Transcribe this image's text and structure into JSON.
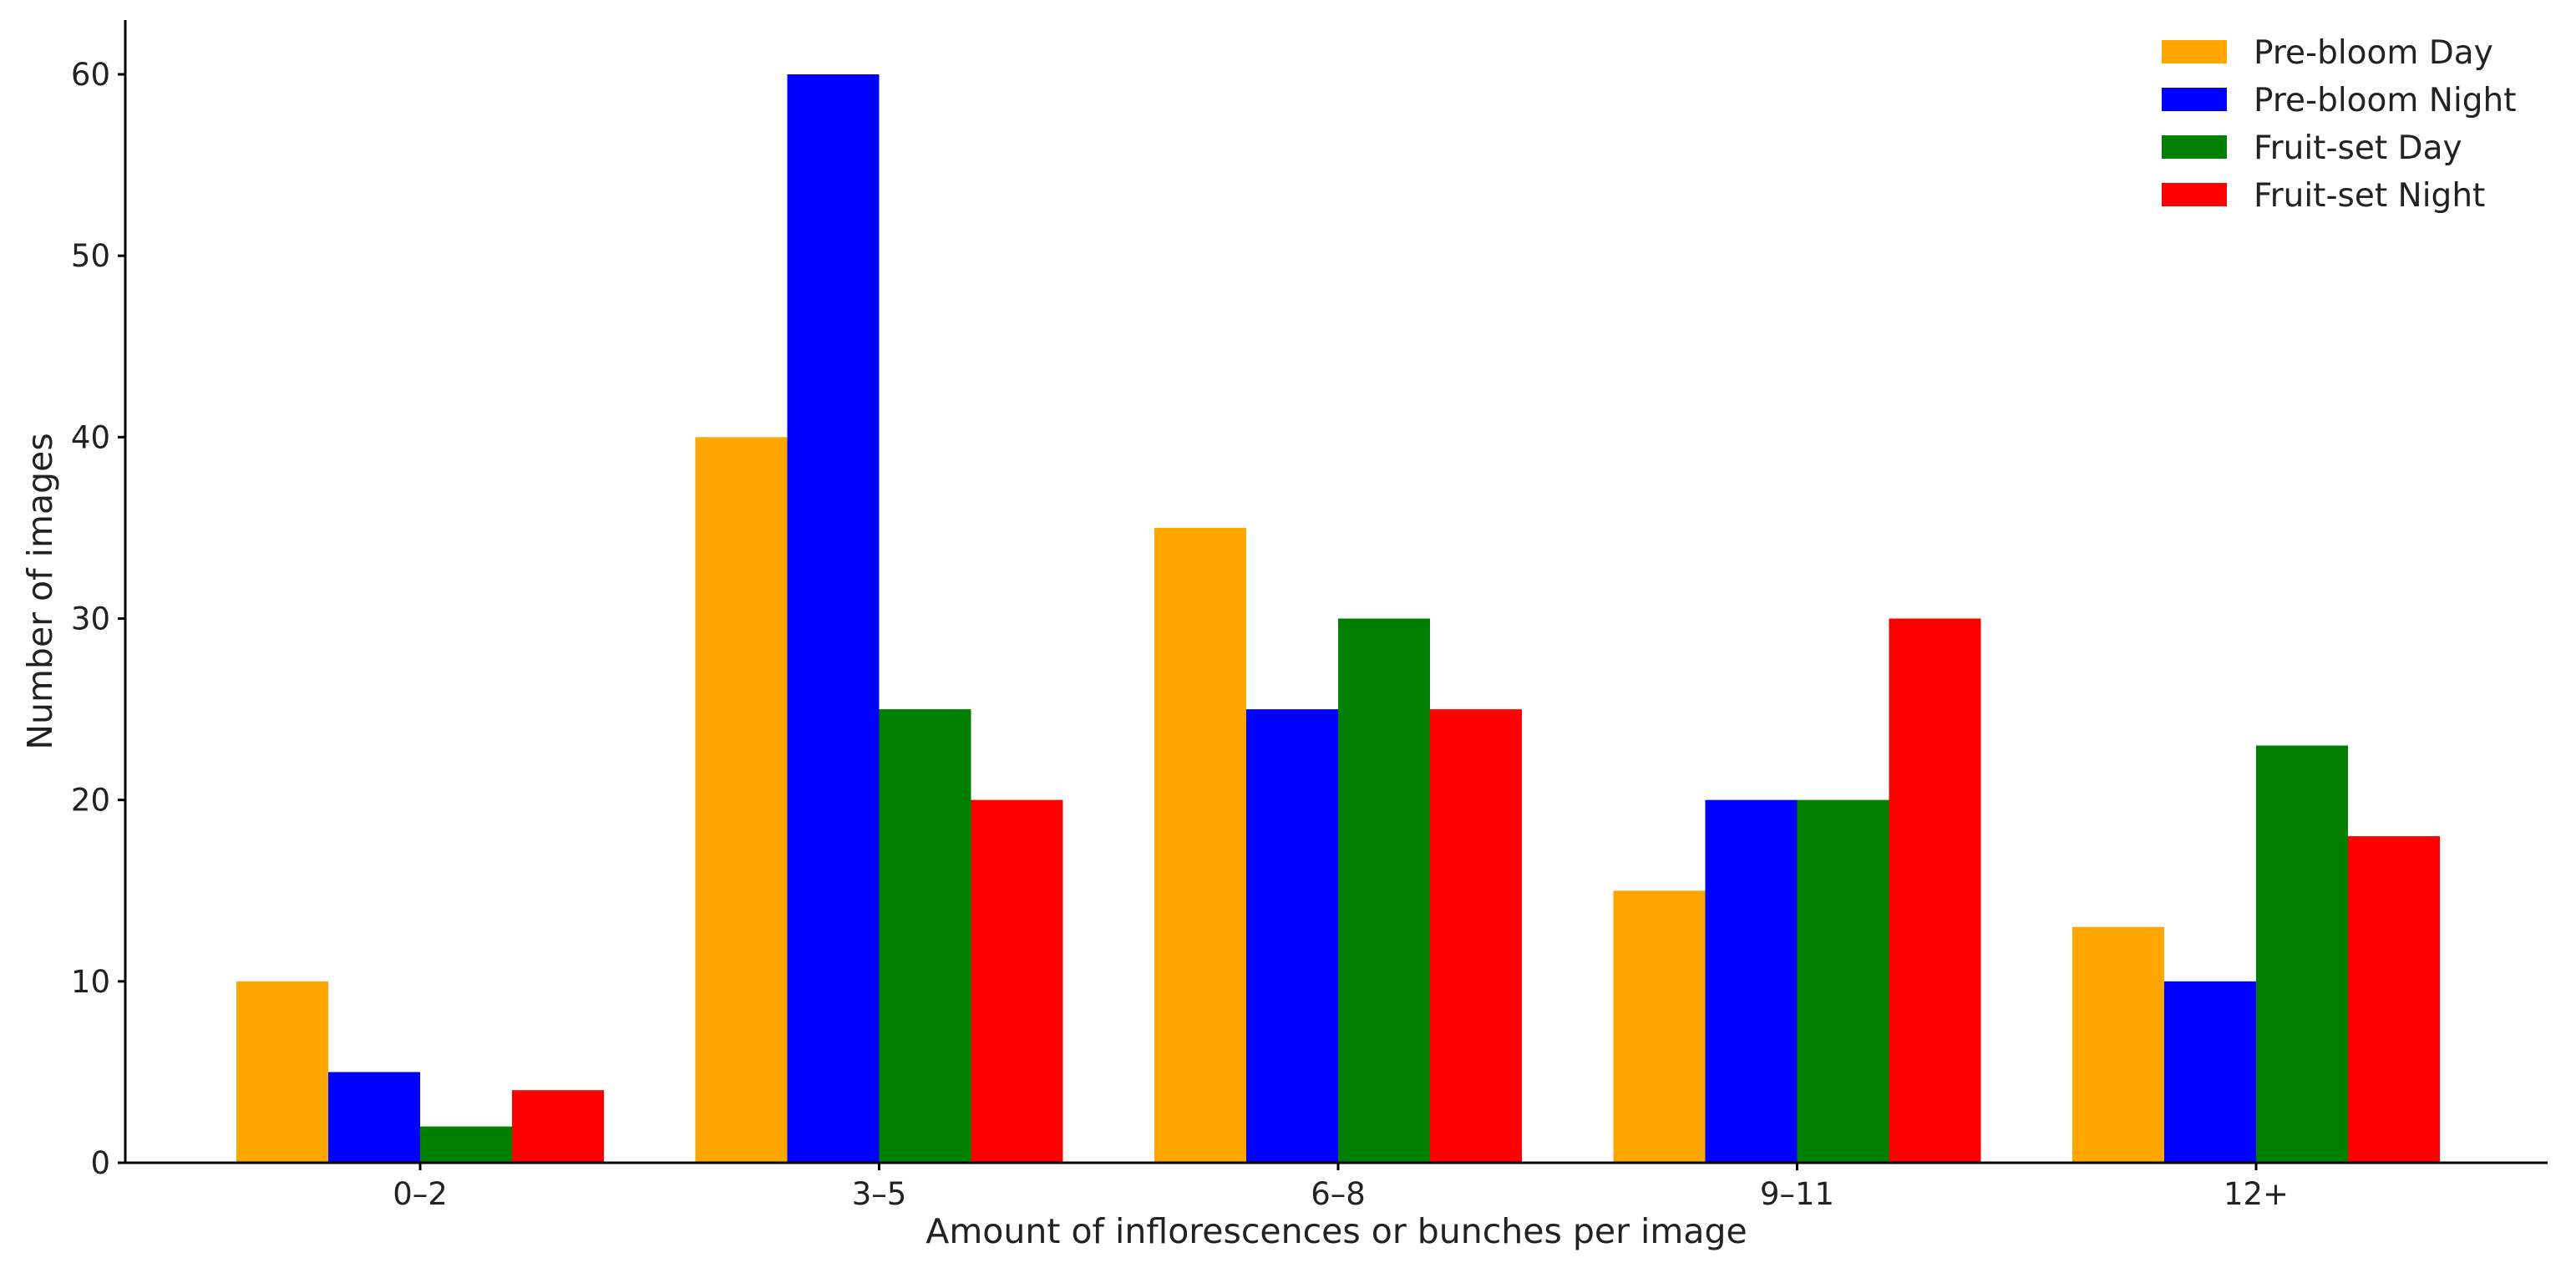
{
  "chart_data": {
    "type": "bar",
    "title": "",
    "xlabel": "Amount of inflorescences or bunches per image",
    "ylabel": "Number of images",
    "categories": [
      "0–2",
      "3–5",
      "6–8",
      "9–11",
      "12+"
    ],
    "series": [
      {
        "name": "Pre-bloom Day",
        "color": "#FFA500",
        "values": [
          10,
          40,
          35,
          15,
          13
        ]
      },
      {
        "name": "Pre-bloom Night",
        "color": "#0000FF",
        "values": [
          5,
          60,
          25,
          20,
          10
        ]
      },
      {
        "name": "Fruit-set Day",
        "color": "#008000",
        "values": [
          2,
          25,
          30,
          20,
          23
        ]
      },
      {
        "name": "Fruit-set Night",
        "color": "#FF0000",
        "values": [
          4,
          20,
          25,
          30,
          18
        ]
      }
    ],
    "ylim": [
      0,
      63
    ],
    "yticks": [
      0,
      10,
      20,
      30,
      40,
      50,
      60
    ],
    "grid": false,
    "legend_position": "top-right"
  }
}
